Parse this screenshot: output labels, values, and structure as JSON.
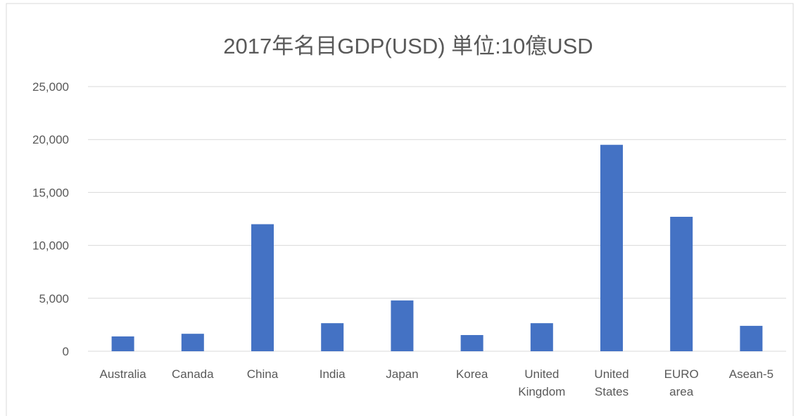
{
  "chart_data": {
    "type": "bar",
    "title": "2017年名目GDP(USD) 単位:10億USD",
    "categories": [
      "Australia",
      "Canada",
      "China",
      "India",
      "Japan",
      "Korea",
      "United Kingdom",
      "United States",
      "EURO area",
      "Asean-5"
    ],
    "values": [
      1400,
      1650,
      12000,
      2650,
      4800,
      1530,
      2650,
      19500,
      12700,
      2400
    ],
    "color": "#4472c4",
    "ylim": [
      0,
      25000
    ],
    "yticks": [
      0,
      {
        "value": 5000,
        "label": "5,000"
      },
      {
        "value": 10000,
        "label": "10,000"
      },
      {
        "value": 15000,
        "label": "15,000"
      },
      {
        "value": 20000,
        "label": "20,000"
      },
      {
        "value": 25000,
        "label": "25,000"
      }
    ],
    "grid": true
  }
}
